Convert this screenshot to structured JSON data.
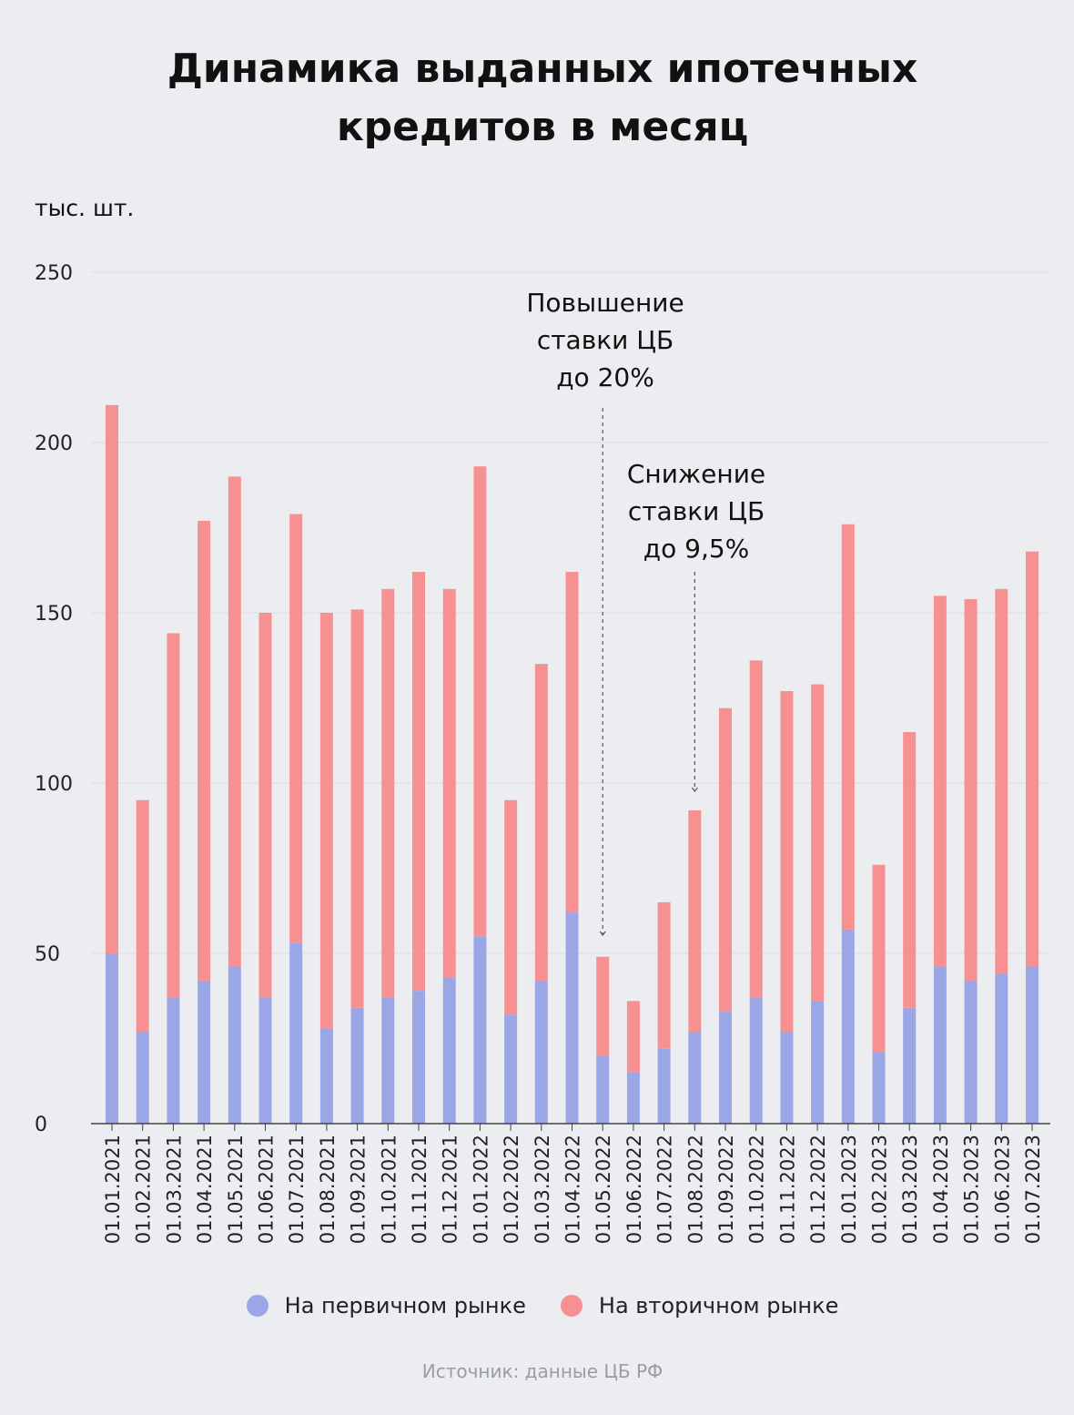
{
  "title": {
    "line1": "Динамика выданных ипотечных",
    "line2": "кредитов в месяц"
  },
  "source": "Источник: данные ЦБ РФ",
  "chart_data": {
    "type": "bar",
    "stacked": true,
    "ylabel": "тыс. шт.",
    "ylim": [
      0,
      250
    ],
    "yticks": [
      0,
      50,
      100,
      150,
      200,
      250
    ],
    "grid": true,
    "legend_position": "bottom",
    "categories": [
      "01.01.2021",
      "01.02.2021",
      "01.03.2021",
      "01.04.2021",
      "01.05.2021",
      "01.06.2021",
      "01.07.2021",
      "01.08.2021",
      "01.09.2021",
      "01.10.2021",
      "01.11.2021",
      "01.12.2021",
      "01.01.2022",
      "01.02.2022",
      "01.03.2022",
      "01.04.2022",
      "01.05.2022",
      "01.06.2022",
      "01.07.2022",
      "01.08.2022",
      "01.09.2022",
      "01.10.2022",
      "01.11.2022",
      "01.12.2022",
      "01.01.2023",
      "01.02.2023",
      "01.03.2023",
      "01.04.2023",
      "01.05.2023",
      "01.06.2023",
      "01.07.2023"
    ],
    "series": [
      {
        "name": "На первичном рынке",
        "color": "#9aa6e6",
        "values": [
          50,
          27,
          37,
          42,
          46,
          37,
          53,
          28,
          34,
          37,
          39,
          43,
          55,
          32,
          42,
          62,
          20,
          15,
          22,
          27,
          33,
          37,
          27,
          36,
          57,
          21,
          34,
          46,
          42,
          44,
          46
        ]
      },
      {
        "name": "На вторичном рынке",
        "color": "#f79191",
        "values": [
          161,
          68,
          107,
          135,
          144,
          113,
          126,
          122,
          117,
          120,
          123,
          114,
          138,
          63,
          93,
          100,
          29,
          21,
          43,
          65,
          89,
          99,
          100,
          93,
          119,
          55,
          81,
          109,
          112,
          113,
          122
        ]
      }
    ],
    "annotations": [
      {
        "lines": [
          "Повышение",
          "ставки ЦБ",
          "до 20%"
        ],
        "category": "01.05.2022"
      },
      {
        "lines": [
          "Снижение",
          "ставки ЦБ",
          "до 9,5%"
        ],
        "category": "01.08.2022"
      }
    ]
  }
}
